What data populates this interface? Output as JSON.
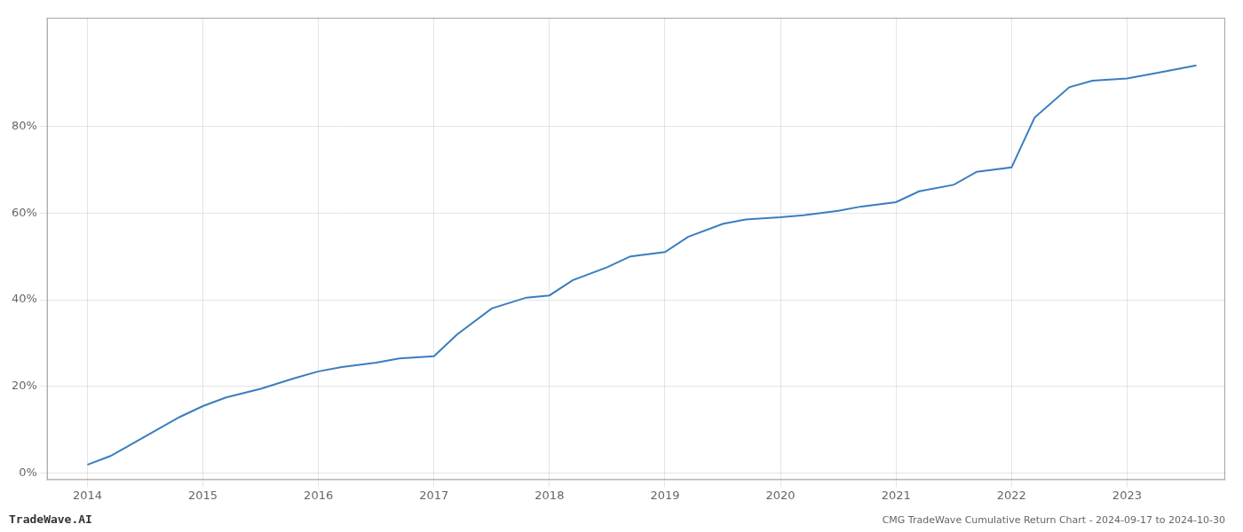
{
  "chart_data": {
    "type": "line",
    "title": "CMG TradeWave Cumulative Return Chart - 2024-09-17 to 2024-10-30",
    "annotations": [
      "TradeWave.AI"
    ],
    "color": "#3a7ebf",
    "x": [
      2014.0,
      2014.2,
      2014.4,
      2014.6,
      2014.8,
      2015.0,
      2015.2,
      2015.5,
      2015.8,
      2016.0,
      2016.2,
      2016.5,
      2016.7,
      2017.0,
      2017.2,
      2017.5,
      2017.8,
      2018.0,
      2018.2,
      2018.5,
      2018.7,
      2019.0,
      2019.2,
      2019.5,
      2019.7,
      2020.0,
      2020.2,
      2020.5,
      2020.7,
      2021.0,
      2021.2,
      2021.5,
      2021.7,
      2022.0,
      2022.2,
      2022.5,
      2022.7,
      2023.0,
      2023.3,
      2023.6
    ],
    "values": [
      0.02,
      0.04,
      0.07,
      0.1,
      0.13,
      0.155,
      0.175,
      0.195,
      0.22,
      0.235,
      0.245,
      0.255,
      0.265,
      0.27,
      0.32,
      0.38,
      0.405,
      0.41,
      0.445,
      0.475,
      0.5,
      0.51,
      0.545,
      0.575,
      0.585,
      0.59,
      0.595,
      0.605,
      0.615,
      0.625,
      0.65,
      0.665,
      0.695,
      0.705,
      0.82,
      0.89,
      0.905,
      0.91,
      0.925,
      0.94
    ],
    "xlim": [
      2013.65,
      2023.85
    ],
    "ylim": [
      -0.015,
      1.05
    ],
    "xticks": [
      2014,
      2015,
      2016,
      2017,
      2018,
      2019,
      2020,
      2021,
      2022,
      2023
    ],
    "yticks": [
      {
        "value": 0.0,
        "label": "0%"
      },
      {
        "value": 0.2,
        "label": "20%"
      },
      {
        "value": 0.4,
        "label": "40%"
      },
      {
        "value": 0.6,
        "label": "60%"
      },
      {
        "value": 0.8,
        "label": "80%"
      }
    ],
    "grid": true
  }
}
